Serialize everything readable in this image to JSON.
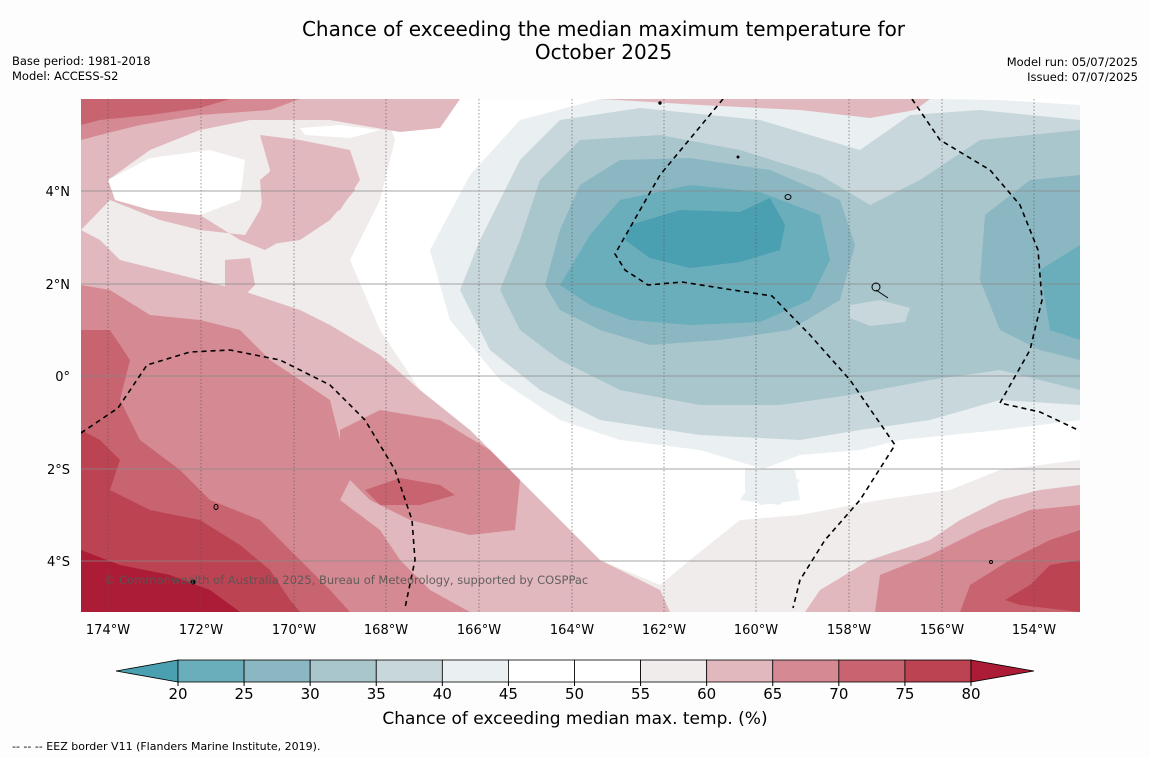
{
  "title": {
    "line1": "Chance of exceeding the median maximum temperature for",
    "line2": "October 2025"
  },
  "meta_left": {
    "base_period": "Base period: 1981-2018",
    "model": "Model: ACCESS-S2"
  },
  "meta_right": {
    "model_run": "Model run: 05/07/2025",
    "issued": "Issued: 07/07/2025"
  },
  "copyright": "© Commonwealth of Australia 2025, Bureau of Meteorology, supported by COSPPac",
  "footnote": "--  --  -- EEZ border V11 (Flanders Marine Institute, 2019).",
  "colorbar": {
    "label": "Chance of exceeding median max. temp. (%)",
    "ticks": [
      "20",
      "25",
      "30",
      "35",
      "40",
      "45",
      "50",
      "55",
      "60",
      "65",
      "70",
      "75",
      "80"
    ],
    "colors": [
      "#4a9fb0",
      "#6aaebb",
      "#8bb7c2",
      "#a9c6cc",
      "#c8d7db",
      "#eaeff1",
      "#ffffff",
      "#ffffff",
      "#efeceb",
      "#e1b8bd",
      "#d58a93",
      "#c86470",
      "#bc4352",
      "#ad1c36"
    ]
  },
  "axes": {
    "x_ticks": [
      "174°W",
      "172°W",
      "170°W",
      "168°W",
      "166°W",
      "164°W",
      "162°W",
      "160°W",
      "158°W",
      "156°W",
      "154°W"
    ],
    "y_ticks": [
      "4°N",
      "2°N",
      "0°",
      "2°S",
      "4°S"
    ]
  }
}
